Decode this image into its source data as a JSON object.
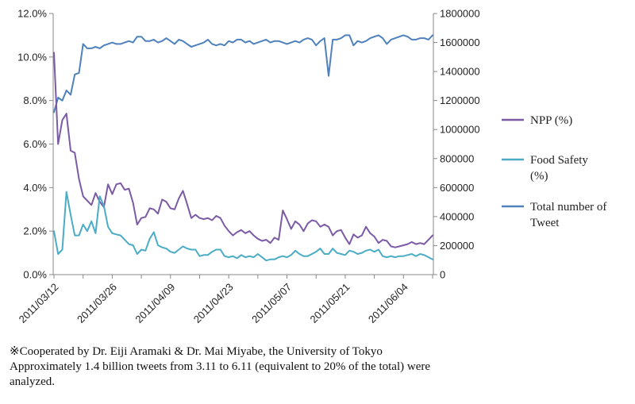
{
  "chart_data": {
    "type": "line",
    "x_labels": [
      "2011/03/12",
      "2011/03/26",
      "2011/04/09",
      "2011/04/23",
      "2011/05/07",
      "2011/05/21",
      "2011/06/04"
    ],
    "y_left": {
      "ticks": [
        "0.0%",
        "2.0%",
        "4.0%",
        "6.0%",
        "8.0%",
        "10.0%",
        "12.0%"
      ],
      "range": [
        0,
        12
      ]
    },
    "y_right": {
      "ticks": [
        "0",
        "200000",
        "400000",
        "600000",
        "800000",
        "1000000",
        "1200000",
        "1400000",
        "1600000",
        "1800000"
      ],
      "range": [
        0,
        1800000
      ]
    },
    "grid": false,
    "legend_position": "right",
    "series": [
      {
        "name": "NPP (%)",
        "axis": "left",
        "color": "#7b5aa6",
        "start": "2011-03-12",
        "values": [
          10.2,
          6.0,
          7.1,
          7.4,
          5.7,
          5.6,
          4.4,
          3.6,
          3.4,
          3.2,
          3.75,
          3.35,
          3.1,
          4.15,
          3.7,
          4.15,
          4.2,
          3.9,
          3.95,
          3.3,
          2.3,
          2.6,
          2.65,
          3.05,
          3.0,
          2.8,
          3.45,
          3.35,
          3.05,
          3.0,
          3.5,
          3.85,
          3.25,
          2.6,
          2.75,
          2.6,
          2.55,
          2.6,
          2.5,
          2.7,
          2.6,
          2.25,
          2.0,
          1.8,
          1.95,
          2.05,
          1.9,
          2.0,
          1.8,
          1.65,
          1.55,
          1.6,
          1.45,
          1.7,
          1.6,
          2.95,
          2.55,
          2.1,
          2.45,
          2.3,
          2.0,
          2.35,
          2.5,
          2.45,
          2.2,
          2.3,
          2.2,
          1.8,
          2.0,
          2.05,
          1.7,
          1.4,
          1.85,
          1.7,
          1.8,
          2.2,
          1.9,
          1.75,
          1.45,
          1.6,
          1.55,
          1.3,
          1.25,
          1.3,
          1.35,
          1.4,
          1.5,
          1.4,
          1.45,
          1.4,
          1.6,
          1.8
        ]
      },
      {
        "name": "Food Safety (%)",
        "axis": "left",
        "color": "#4bacc6",
        "start": "2011-03-12",
        "values": [
          2.0,
          0.95,
          1.15,
          3.8,
          2.75,
          1.8,
          1.8,
          2.3,
          2.0,
          2.45,
          1.9,
          3.6,
          3.15,
          2.2,
          1.9,
          1.85,
          1.8,
          1.6,
          1.4,
          1.35,
          0.95,
          1.15,
          1.1,
          1.65,
          1.95,
          1.35,
          1.25,
          1.2,
          1.05,
          1.0,
          1.15,
          1.3,
          1.2,
          1.15,
          1.15,
          0.85,
          0.9,
          0.9,
          1.05,
          1.15,
          1.15,
          0.85,
          0.8,
          0.85,
          0.75,
          0.9,
          0.8,
          0.85,
          0.8,
          0.95,
          0.8,
          0.65,
          0.7,
          0.7,
          0.8,
          0.85,
          0.8,
          0.9,
          1.1,
          0.95,
          0.85,
          0.85,
          0.95,
          1.05,
          1.2,
          0.95,
          0.95,
          1.2,
          1.0,
          0.95,
          0.9,
          1.1,
          1.05,
          0.95,
          1.0,
          1.1,
          1.15,
          1.05,
          1.15,
          0.85,
          0.8,
          0.85,
          0.8,
          0.85,
          0.85,
          0.9,
          0.95,
          0.85,
          0.95,
          0.9,
          0.8,
          0.7
        ]
      },
      {
        "name": "Total number of Tweet",
        "axis": "right",
        "color": "#4f81bd",
        "start": "2011-03-12",
        "values": [
          1120000,
          1220000,
          1200000,
          1270000,
          1240000,
          1380000,
          1390000,
          1590000,
          1560000,
          1560000,
          1570000,
          1560000,
          1580000,
          1590000,
          1600000,
          1590000,
          1590000,
          1600000,
          1610000,
          1600000,
          1640000,
          1640000,
          1610000,
          1610000,
          1620000,
          1600000,
          1610000,
          1630000,
          1610000,
          1590000,
          1620000,
          1610000,
          1590000,
          1570000,
          1580000,
          1590000,
          1600000,
          1620000,
          1590000,
          1580000,
          1590000,
          1580000,
          1610000,
          1600000,
          1620000,
          1620000,
          1600000,
          1610000,
          1590000,
          1600000,
          1610000,
          1620000,
          1600000,
          1610000,
          1610000,
          1600000,
          1590000,
          1600000,
          1610000,
          1600000,
          1620000,
          1630000,
          1620000,
          1580000,
          1610000,
          1630000,
          1370000,
          1620000,
          1620000,
          1630000,
          1650000,
          1650000,
          1580000,
          1610000,
          1600000,
          1610000,
          1630000,
          1640000,
          1650000,
          1630000,
          1590000,
          1620000,
          1630000,
          1640000,
          1650000,
          1640000,
          1620000,
          1620000,
          1630000,
          1630000,
          1620000,
          1650000
        ]
      }
    ]
  },
  "footnote": {
    "line1": "※Cooperated by Dr. Eiji Aramaki & Dr. Mai Miyabe, the University of Tokyo",
    "line2": "Approximately  1.4 billion tweets from 3.11 to 6.11 (equivalent to 20% of the total) were",
    "line3": "analyzed."
  }
}
